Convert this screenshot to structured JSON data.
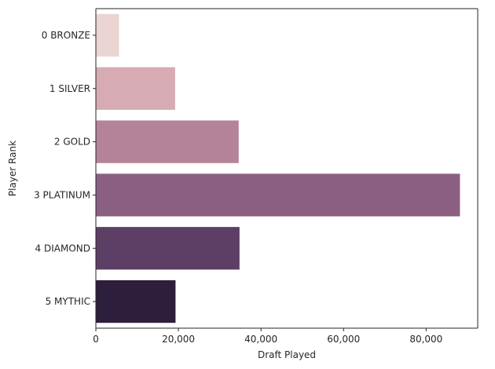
{
  "chart_data": {
    "type": "bar",
    "orientation": "horizontal",
    "title": "",
    "xlabel": "Draft Played",
    "ylabel": "Player Rank",
    "categories": [
      "0 BRONZE",
      "1 SILVER",
      "2 GOLD",
      "3 PLATINUM",
      "4 DIAMOND",
      "5 MYTHIC"
    ],
    "values": [
      5600,
      19200,
      34600,
      88200,
      34800,
      19300
    ],
    "xlim": [
      0,
      92500
    ],
    "xticks": [
      0,
      20000,
      40000,
      60000,
      80000
    ],
    "xtick_labels": [
      "0",
      "20,000",
      "40,000",
      "60,000",
      "80,000"
    ],
    "colors": [
      "#ead5d2",
      "#d6abb3",
      "#b48399",
      "#8b5f82",
      "#5d3e64",
      "#2d1e3d"
    ],
    "grid": false,
    "legend": "none"
  }
}
